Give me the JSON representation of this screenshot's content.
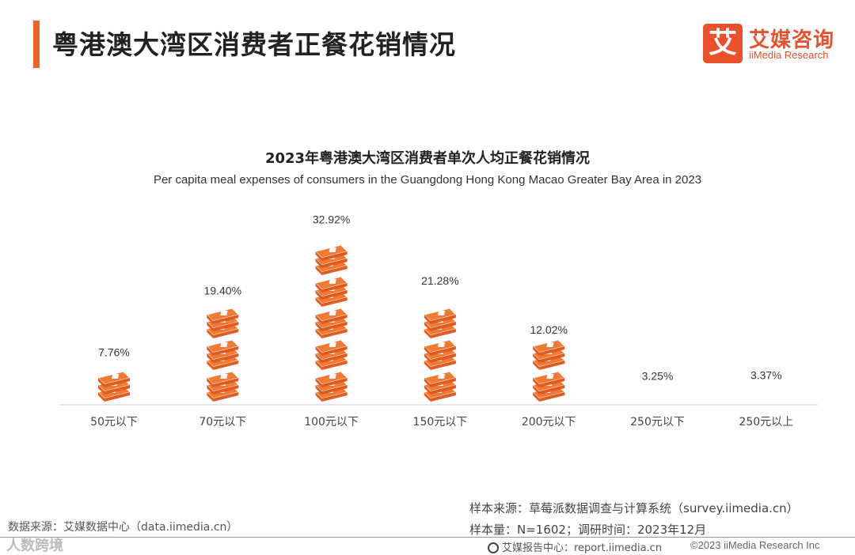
{
  "header": {
    "title": "粤港澳大湾区消费者正餐花销情况",
    "logo_box": "艾",
    "logo_cn": "艾媒咨询",
    "logo_en": "iiMedia Research"
  },
  "chart_data": {
    "type": "bar",
    "title": "2023年粤港澳大湾区消费者单次人均正餐花销情况",
    "subtitle": "Per capita meal expenses of consumers in the Guangdong Hong Kong Macao Greater Bay Area in 2023",
    "categories": [
      "50元以下",
      "70元以下",
      "100元以下",
      "150元以下",
      "200元以下",
      "250元以下",
      "250元以上"
    ],
    "values": [
      7.76,
      19.4,
      32.92,
      21.28,
      12.02,
      3.25,
      3.37
    ],
    "value_labels": [
      "7.76%",
      "19.40%",
      "32.92%",
      "21.28%",
      "12.02%",
      "3.25%",
      "3.37%"
    ],
    "unit": "%",
    "ylim": [
      0,
      35
    ],
    "xlabel": "",
    "ylabel": "",
    "colors": {
      "bill": "#f07a32",
      "bill_dark": "#e2581f",
      "bill_light": "#f9b07a"
    }
  },
  "footer": {
    "source_left": "数据来源：艾媒数据中心（data.iimedia.cn）",
    "watermark": "人数跨境",
    "source_right_1": "样本来源：草莓派数据调查与计算系统（survey.iimedia.cn）",
    "source_right_2": "样本量：N=1602；调研时间：2023年12月",
    "report_center": "艾媒报告中心：report.iimedia.cn",
    "copyright": "©2023  iiMedia Research Inc"
  }
}
